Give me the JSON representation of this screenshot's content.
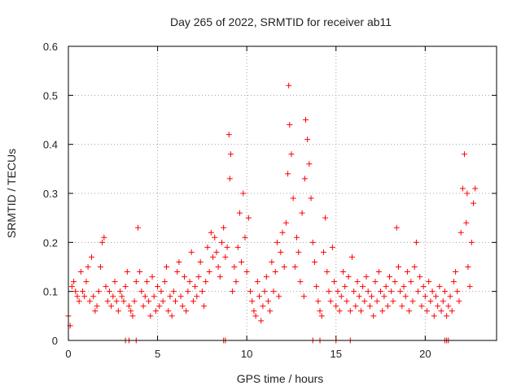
{
  "chart_data": {
    "type": "scatter",
    "title": "Day 265 of 2022, SRMTID for receiver ab11",
    "xlabel": "GPS time / hours",
    "ylabel": "SRMTID / TECUs",
    "xlim": [
      0,
      24
    ],
    "ylim": [
      0,
      0.6
    ],
    "xticks": [
      0,
      5,
      10,
      15,
      20
    ],
    "xtick_labels": [
      "0",
      "5",
      "10",
      "15",
      "20"
    ],
    "yticks": [
      0,
      0.1,
      0.2,
      0.3,
      0.4,
      0.5,
      0.6
    ],
    "ytick_labels": [
      "0",
      "0.1",
      "0.2",
      "0.3",
      "0.4",
      "0.5",
      "0.6"
    ],
    "grid": true,
    "legend": "none",
    "marker": "plus",
    "color": "#ff0000",
    "series": [
      {
        "name": "SRMTID",
        "x": [
          0.0,
          0.1,
          0.2,
          0.3,
          0.4,
          0.5,
          0.6,
          0.7,
          0.8,
          0.9,
          1.0,
          1.1,
          1.2,
          1.3,
          1.4,
          1.5,
          1.6,
          1.7,
          1.8,
          1.9,
          2.0,
          2.1,
          2.2,
          2.3,
          2.4,
          2.5,
          2.6,
          2.7,
          2.8,
          2.9,
          3.0,
          3.1,
          3.2,
          3.3,
          3.4,
          3.5,
          3.6,
          3.7,
          3.8,
          3.9,
          4.0,
          4.1,
          4.2,
          4.3,
          4.4,
          4.5,
          4.6,
          4.7,
          4.8,
          4.9,
          5.0,
          5.1,
          5.2,
          5.3,
          5.4,
          5.5,
          5.6,
          5.7,
          5.8,
          5.9,
          6.0,
          6.1,
          6.2,
          6.3,
          6.4,
          6.5,
          6.6,
          6.7,
          6.8,
          6.9,
          7.0,
          7.1,
          7.2,
          7.3,
          7.4,
          7.5,
          7.6,
          7.7,
          7.8,
          7.9,
          8.0,
          8.1,
          8.2,
          8.3,
          8.4,
          8.5,
          8.6,
          8.7,
          8.8,
          8.9,
          9.0,
          9.05,
          9.1,
          9.2,
          9.3,
          9.4,
          9.5,
          9.6,
          9.7,
          9.8,
          9.9,
          10.0,
          10.1,
          10.2,
          10.3,
          10.4,
          10.5,
          10.6,
          10.7,
          10.8,
          10.9,
          11.0,
          11.1,
          11.2,
          11.3,
          11.4,
          11.5,
          11.6,
          11.7,
          11.8,
          11.9,
          12.0,
          12.1,
          12.2,
          12.3,
          12.35,
          12.4,
          12.5,
          12.6,
          12.7,
          12.8,
          12.9,
          13.0,
          13.1,
          13.2,
          13.25,
          13.3,
          13.4,
          13.5,
          13.6,
          13.7,
          13.8,
          13.9,
          14.0,
          14.1,
          14.2,
          14.3,
          14.4,
          14.5,
          14.6,
          14.7,
          14.8,
          14.9,
          15.0,
          15.1,
          15.2,
          15.3,
          15.4,
          15.5,
          15.6,
          15.7,
          15.8,
          15.9,
          16.0,
          16.1,
          16.2,
          16.3,
          16.4,
          16.5,
          16.6,
          16.7,
          16.8,
          16.9,
          17.0,
          17.1,
          17.2,
          17.3,
          17.4,
          17.5,
          17.6,
          17.7,
          17.8,
          17.9,
          18.0,
          18.1,
          18.2,
          18.3,
          18.4,
          18.5,
          18.6,
          18.7,
          18.8,
          18.9,
          19.0,
          19.1,
          19.2,
          19.3,
          19.4,
          19.5,
          19.6,
          19.7,
          19.8,
          19.9,
          20.0,
          20.1,
          20.2,
          20.3,
          20.4,
          20.5,
          20.6,
          20.7,
          20.8,
          20.9,
          21.0,
          21.1,
          21.2,
          21.3,
          21.4,
          21.5,
          21.6,
          21.7,
          21.8,
          21.9,
          22.0,
          22.1,
          22.2,
          22.3,
          22.35,
          22.4,
          22.5,
          22.6,
          22.7,
          22.8,
          3.2,
          3.4,
          3.8,
          8.7,
          8.8,
          13.7,
          14.1,
          15.0,
          15.8,
          21.1,
          21.2,
          21.3
        ],
        "y": [
          0.05,
          0.03,
          0.11,
          0.12,
          0.1,
          0.09,
          0.08,
          0.14,
          0.1,
          0.09,
          0.12,
          0.15,
          0.08,
          0.17,
          0.09,
          0.06,
          0.07,
          0.1,
          0.15,
          0.2,
          0.21,
          0.11,
          0.08,
          0.1,
          0.07,
          0.09,
          0.12,
          0.08,
          0.06,
          0.1,
          0.09,
          0.08,
          0.11,
          0.14,
          0.07,
          0.06,
          0.05,
          0.08,
          0.12,
          0.23,
          0.14,
          0.1,
          0.07,
          0.09,
          0.12,
          0.08,
          0.05,
          0.13,
          0.09,
          0.06,
          0.11,
          0.07,
          0.1,
          0.08,
          0.12,
          0.15,
          0.06,
          0.09,
          0.05,
          0.1,
          0.08,
          0.14,
          0.16,
          0.09,
          0.07,
          0.13,
          0.06,
          0.1,
          0.12,
          0.18,
          0.08,
          0.11,
          0.09,
          0.13,
          0.16,
          0.1,
          0.07,
          0.12,
          0.19,
          0.14,
          0.22,
          0.17,
          0.21,
          0.18,
          0.15,
          0.13,
          0.2,
          0.23,
          0.17,
          0.19,
          0.42,
          0.33,
          0.38,
          0.1,
          0.15,
          0.12,
          0.19,
          0.26,
          0.16,
          0.3,
          0.21,
          0.14,
          0.25,
          0.1,
          0.08,
          0.06,
          0.05,
          0.12,
          0.09,
          0.04,
          0.07,
          0.1,
          0.13,
          0.08,
          0.06,
          0.16,
          0.1,
          0.14,
          0.2,
          0.09,
          0.18,
          0.22,
          0.15,
          0.24,
          0.34,
          0.52,
          0.44,
          0.38,
          0.29,
          0.15,
          0.21,
          0.18,
          0.12,
          0.26,
          0.09,
          0.33,
          0.45,
          0.41,
          0.36,
          0.29,
          0.2,
          0.16,
          0.11,
          0.08,
          0.06,
          0.05,
          0.18,
          0.25,
          0.14,
          0.1,
          0.08,
          0.19,
          0.12,
          0.07,
          0.1,
          0.06,
          0.09,
          0.14,
          0.11,
          0.08,
          0.13,
          0.06,
          0.17,
          0.1,
          0.07,
          0.12,
          0.09,
          0.06,
          0.11,
          0.08,
          0.13,
          0.1,
          0.07,
          0.09,
          0.05,
          0.12,
          0.08,
          0.14,
          0.1,
          0.06,
          0.09,
          0.11,
          0.07,
          0.13,
          0.1,
          0.08,
          0.12,
          0.23,
          0.15,
          0.1,
          0.07,
          0.11,
          0.09,
          0.14,
          0.06,
          0.12,
          0.08,
          0.15,
          0.2,
          0.1,
          0.13,
          0.07,
          0.11,
          0.09,
          0.06,
          0.12,
          0.08,
          0.1,
          0.05,
          0.09,
          0.07,
          0.11,
          0.06,
          0.08,
          0.1,
          0.05,
          0.07,
          0.09,
          0.06,
          0.12,
          0.14,
          0.1,
          0.08,
          0.22,
          0.31,
          0.38,
          0.24,
          0.3,
          0.15,
          0.11,
          0.2,
          0.28,
          0.31,
          0,
          0,
          0,
          0,
          0,
          0,
          0,
          0,
          0,
          0,
          0,
          0
        ]
      }
    ]
  }
}
